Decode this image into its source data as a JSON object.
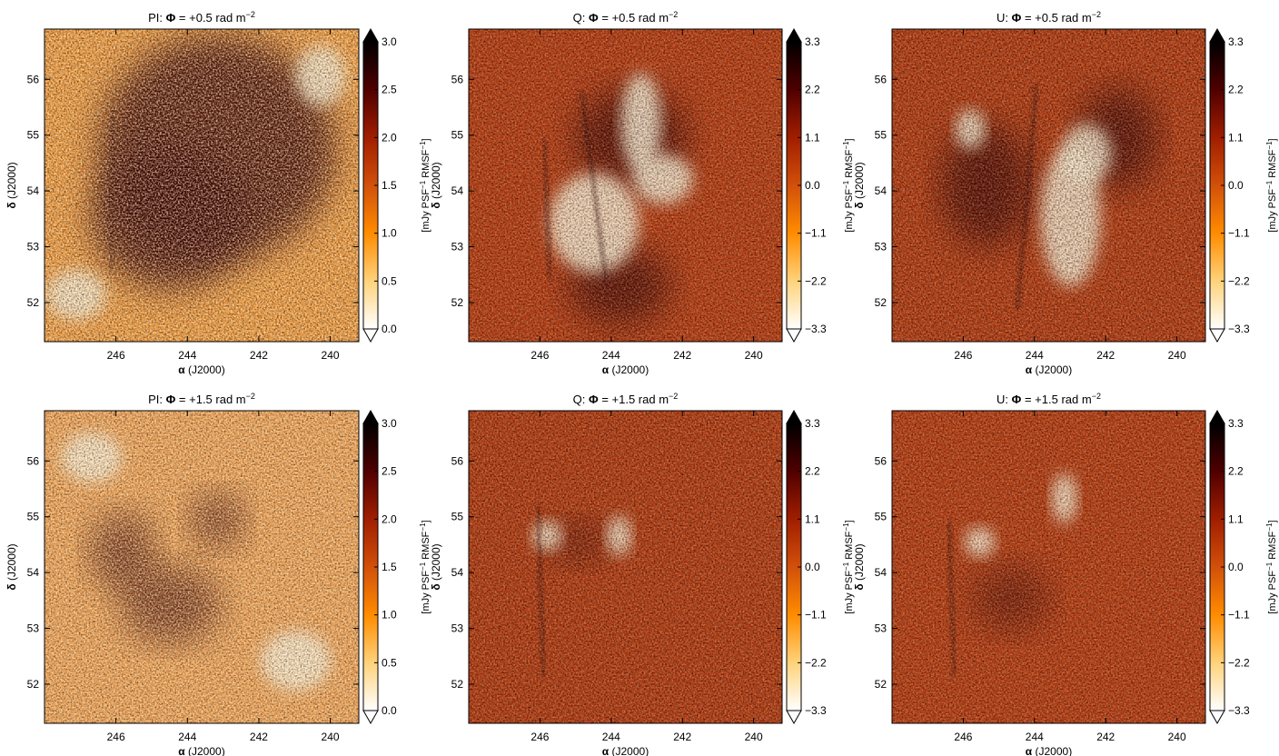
{
  "chart_data": [
    {
      "type": "heatmap",
      "panel": "PI",
      "title_prefix": "PI:",
      "title_phi": "Φ",
      "title_value": "= +0.5 rad m",
      "title_exp": "−2",
      "xlabel_symbol": "α",
      "xlabel": "(J2000)",
      "ylabel_symbol": "δ",
      "ylabel": "(J2000)",
      "x_ticks": [
        "246",
        "244",
        "242",
        "240"
      ],
      "x_tick_values": [
        246,
        244,
        242,
        240
      ],
      "xlim": [
        248.0,
        239.2
      ],
      "y_ticks": [
        "52",
        "53",
        "54",
        "55",
        "56"
      ],
      "y_tick_values": [
        52,
        53,
        54,
        55,
        56
      ],
      "ylim": [
        51.3,
        56.9
      ],
      "colorbar_ticks": [
        "0.0",
        "0.5",
        "1.0",
        "1.5",
        "2.0",
        "2.5",
        "3.0"
      ],
      "colorbar_tick_values": [
        0.0,
        0.5,
        1.0,
        1.5,
        2.0,
        2.5,
        3.0
      ],
      "colorbar_range": [
        0.0,
        3.0
      ],
      "colorbar_label": "[mJy PSF",
      "colorbar_label_sup1": "−1",
      "colorbar_label_mid": " RMSF",
      "colorbar_label_sup2": "−1",
      "colorbar_label_end": "]",
      "colormap": "afmhot_r"
    },
    {
      "type": "heatmap",
      "panel": "Q",
      "title_prefix": "Q:",
      "title_phi": "Φ",
      "title_value": "= +0.5 rad m",
      "title_exp": "−2",
      "xlabel_symbol": "α",
      "xlabel": "(J2000)",
      "ylabel_symbol": "δ",
      "ylabel": "(J2000)",
      "x_ticks": [
        "246",
        "244",
        "242",
        "240"
      ],
      "x_tick_values": [
        246,
        244,
        242,
        240
      ],
      "xlim": [
        248.0,
        239.2
      ],
      "y_ticks": [
        "52",
        "53",
        "54",
        "55",
        "56"
      ],
      "y_tick_values": [
        52,
        53,
        54,
        55,
        56
      ],
      "ylim": [
        51.3,
        56.9
      ],
      "colorbar_ticks": [
        "−3.3",
        "−2.2",
        "−1.1",
        "0.0",
        "1.1",
        "2.2",
        "3.3"
      ],
      "colorbar_tick_values": [
        -3.3,
        -2.2,
        -1.1,
        0.0,
        1.1,
        2.2,
        3.3
      ],
      "colorbar_range": [
        -3.3,
        3.3
      ],
      "colorbar_label": "[mJy PSF",
      "colorbar_label_sup1": "−1",
      "colorbar_label_mid": " RMSF",
      "colorbar_label_sup2": "−1",
      "colorbar_label_end": "]",
      "colormap": "afmhot_r"
    },
    {
      "type": "heatmap",
      "panel": "U",
      "title_prefix": "U:",
      "title_phi": "Φ",
      "title_value": "= +0.5 rad m",
      "title_exp": "−2",
      "xlabel_symbol": "α",
      "xlabel": "(J2000)",
      "ylabel_symbol": "δ",
      "ylabel": "(J2000)",
      "x_ticks": [
        "246",
        "244",
        "242",
        "240"
      ],
      "x_tick_values": [
        246,
        244,
        242,
        240
      ],
      "xlim": [
        248.0,
        239.2
      ],
      "y_ticks": [
        "52",
        "53",
        "54",
        "55",
        "56"
      ],
      "y_tick_values": [
        52,
        53,
        54,
        55,
        56
      ],
      "ylim": [
        51.3,
        56.9
      ],
      "colorbar_ticks": [
        "−3.3",
        "−2.2",
        "−1.1",
        "0.0",
        "1.1",
        "2.2",
        "3.3"
      ],
      "colorbar_tick_values": [
        -3.3,
        -2.2,
        -1.1,
        0.0,
        1.1,
        2.2,
        3.3
      ],
      "colorbar_range": [
        -3.3,
        3.3
      ],
      "colorbar_label": "[mJy PSF",
      "colorbar_label_sup1": "−1",
      "colorbar_label_mid": " RMSF",
      "colorbar_label_sup2": "−1",
      "colorbar_label_end": "]",
      "colormap": "afmhot_r"
    },
    {
      "type": "heatmap",
      "panel": "PI",
      "title_prefix": "PI:",
      "title_phi": "Φ",
      "title_value": "= +1.5 rad m",
      "title_exp": "−2",
      "xlabel_symbol": "α",
      "xlabel": "(J2000)",
      "ylabel_symbol": "δ",
      "ylabel": "(J2000)",
      "x_ticks": [
        "246",
        "244",
        "242",
        "240"
      ],
      "x_tick_values": [
        246,
        244,
        242,
        240
      ],
      "xlim": [
        248.0,
        239.2
      ],
      "y_ticks": [
        "52",
        "53",
        "54",
        "55",
        "56"
      ],
      "y_tick_values": [
        52,
        53,
        54,
        55,
        56
      ],
      "ylim": [
        51.3,
        56.9
      ],
      "colorbar_ticks": [
        "0.0",
        "0.5",
        "1.0",
        "1.5",
        "2.0",
        "2.5",
        "3.0"
      ],
      "colorbar_tick_values": [
        0.0,
        0.5,
        1.0,
        1.5,
        2.0,
        2.5,
        3.0
      ],
      "colorbar_range": [
        0.0,
        3.0
      ],
      "colorbar_label": "[mJy PSF",
      "colorbar_label_sup1": "−1",
      "colorbar_label_mid": " RMSF",
      "colorbar_label_sup2": "−1",
      "colorbar_label_end": "]",
      "colormap": "afmhot_r"
    },
    {
      "type": "heatmap",
      "panel": "Q",
      "title_prefix": "Q:",
      "title_phi": "Φ",
      "title_value": "= +1.5 rad m",
      "title_exp": "−2",
      "xlabel_symbol": "α",
      "xlabel": "(J2000)",
      "ylabel_symbol": "δ",
      "ylabel": "(J2000)",
      "x_ticks": [
        "246",
        "244",
        "242",
        "240"
      ],
      "x_tick_values": [
        246,
        244,
        242,
        240
      ],
      "xlim": [
        248.0,
        239.2
      ],
      "y_ticks": [
        "52",
        "53",
        "54",
        "55",
        "56"
      ],
      "y_tick_values": [
        52,
        53,
        54,
        55,
        56
      ],
      "ylim": [
        51.3,
        56.9
      ],
      "colorbar_ticks": [
        "−3.3",
        "−2.2",
        "−1.1",
        "0.0",
        "1.1",
        "2.2",
        "3.3"
      ],
      "colorbar_tick_values": [
        -3.3,
        -2.2,
        -1.1,
        0.0,
        1.1,
        2.2,
        3.3
      ],
      "colorbar_range": [
        -3.3,
        3.3
      ],
      "colorbar_label": "[mJy PSF",
      "colorbar_label_sup1": "−1",
      "colorbar_label_mid": " RMSF",
      "colorbar_label_sup2": "−1",
      "colorbar_label_end": "]",
      "colormap": "afmhot_r"
    },
    {
      "type": "heatmap",
      "panel": "U",
      "title_prefix": "U:",
      "title_phi": "Φ",
      "title_value": "= +1.5 rad m",
      "title_exp": "−2",
      "xlabel_symbol": "α",
      "xlabel": "(J2000)",
      "ylabel_symbol": "δ",
      "ylabel": "(J2000)",
      "x_ticks": [
        "246",
        "244",
        "242",
        "240"
      ],
      "x_tick_values": [
        246,
        244,
        242,
        240
      ],
      "xlim": [
        248.0,
        239.2
      ],
      "y_ticks": [
        "52",
        "53",
        "54",
        "55",
        "56"
      ],
      "y_tick_values": [
        52,
        53,
        54,
        55,
        56
      ],
      "ylim": [
        51.3,
        56.9
      ],
      "colorbar_ticks": [
        "−3.3",
        "−2.2",
        "−1.1",
        "0.0",
        "1.1",
        "2.2",
        "3.3"
      ],
      "colorbar_tick_values": [
        -3.3,
        -2.2,
        -1.1,
        0.0,
        1.1,
        2.2,
        3.3
      ],
      "colorbar_range": [
        -3.3,
        3.3
      ],
      "colorbar_label": "[mJy PSF",
      "colorbar_label_sup1": "−1",
      "colorbar_label_mid": " RMSF",
      "colorbar_label_sup2": "−1",
      "colorbar_label_end": "]",
      "colormap": "afmhot_r"
    }
  ],
  "colors": {
    "colormap_stops": [
      "#ffffff",
      "#ffd27a",
      "#ff8c00",
      "#d2500a",
      "#a01e00",
      "#500000",
      "#000000"
    ],
    "axis": "#000000",
    "background": "#ffffff"
  }
}
